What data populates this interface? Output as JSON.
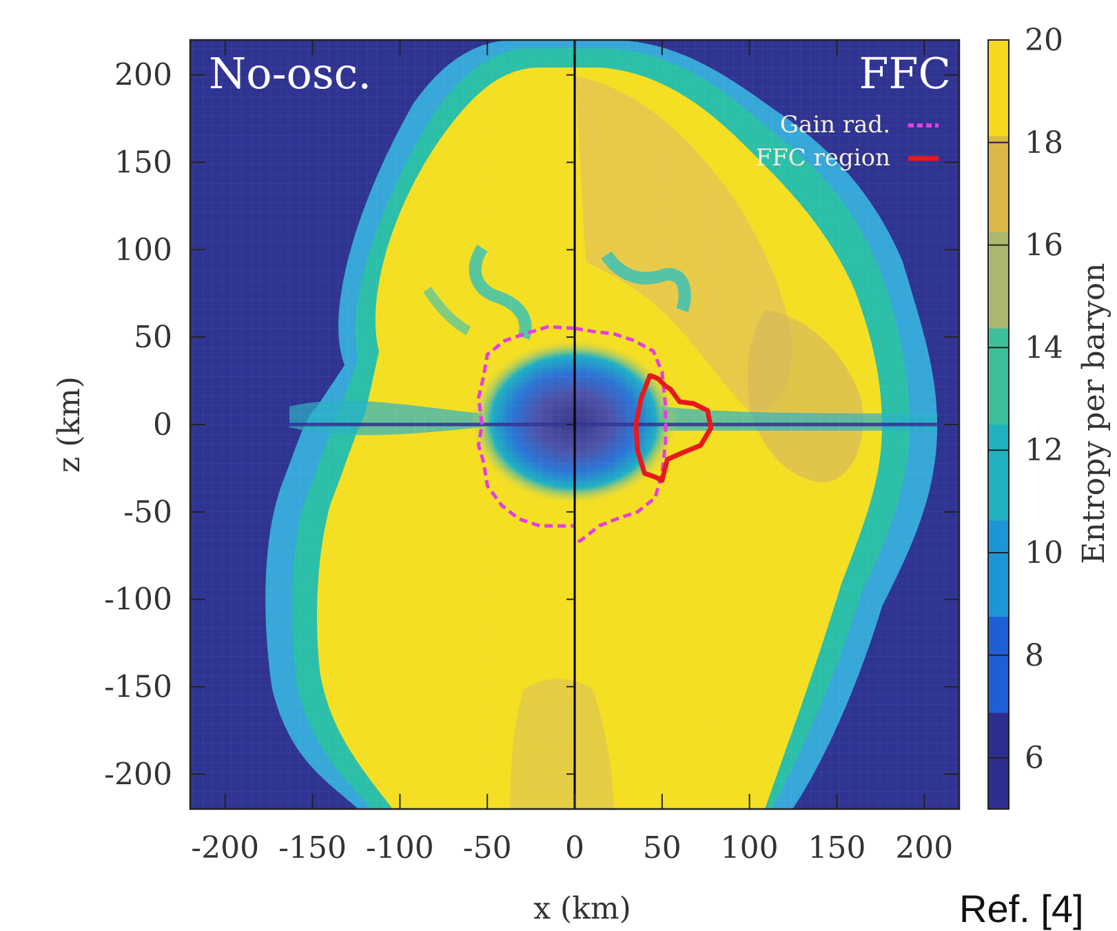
{
  "chart_data": {
    "type": "heatmap",
    "title": "",
    "xlabel": "x (km)",
    "ylabel": "z (km)",
    "xlim": [
      -220,
      220
    ],
    "ylim": [
      -220,
      220
    ],
    "x_ticks": [
      -200,
      -150,
      -100,
      -50,
      0,
      50,
      100,
      150,
      200
    ],
    "y_ticks": [
      -200,
      -150,
      -100,
      -50,
      0,
      50,
      100,
      150,
      200
    ],
    "panels": [
      {
        "name": "No-osc.",
        "side": "left"
      },
      {
        "name": "FFC",
        "side": "right"
      }
    ],
    "colorbar": {
      "label": "Entropy per baryon",
      "range": [
        5,
        20
      ],
      "ticks": [
        6,
        8,
        10,
        12,
        14,
        16,
        18,
        20
      ],
      "colors": [
        "#2e2e8e",
        "#1f5fd6",
        "#1d96d8",
        "#1fb3c0",
        "#3cbf9a",
        "#a9b86c",
        "#dcb84a",
        "#f6d820"
      ]
    },
    "series": [
      {
        "name": "Gain rad.",
        "style": "dashed",
        "color": "#e33fe0",
        "points": [
          [
            0,
            55
          ],
          [
            -15,
            56
          ],
          [
            -28,
            52
          ],
          [
            -40,
            48
          ],
          [
            -50,
            40
          ],
          [
            -52,
            28
          ],
          [
            -55,
            15
          ],
          [
            -53,
            0
          ],
          [
            -55,
            -12
          ],
          [
            -52,
            -22
          ],
          [
            -50,
            -35
          ],
          [
            -42,
            -46
          ],
          [
            -32,
            -54
          ],
          [
            -20,
            -58
          ],
          [
            -5,
            -58
          ],
          [
            0,
            -58
          ],
          [
            0,
            55
          ]
        ],
        "points_right": [
          [
            0,
            55
          ],
          [
            12,
            53
          ],
          [
            22,
            52
          ],
          [
            34,
            48
          ],
          [
            45,
            42
          ],
          [
            50,
            30
          ],
          [
            52,
            10
          ],
          [
            52,
            -10
          ],
          [
            50,
            -28
          ],
          [
            46,
            -42
          ],
          [
            36,
            -50
          ],
          [
            24,
            -54
          ],
          [
            14,
            -58
          ],
          [
            4,
            -66
          ],
          [
            0,
            -68
          ]
        ]
      },
      {
        "name": "FFC region",
        "style": "solid",
        "color": "#e8191d",
        "points": [
          [
            43,
            28
          ],
          [
            38,
            15
          ],
          [
            35,
            0
          ],
          [
            36,
            -15
          ],
          [
            40,
            -28
          ],
          [
            46,
            -30
          ],
          [
            50,
            -32
          ],
          [
            53,
            -20
          ],
          [
            62,
            -16
          ],
          [
            72,
            -12
          ],
          [
            78,
            -2
          ],
          [
            76,
            8
          ],
          [
            68,
            12
          ],
          [
            60,
            13
          ],
          [
            55,
            20
          ],
          [
            52,
            22
          ],
          [
            48,
            26
          ],
          [
            46,
            27
          ],
          [
            43,
            28
          ]
        ]
      }
    ],
    "annotations": [
      "Ref. [4]"
    ]
  }
}
